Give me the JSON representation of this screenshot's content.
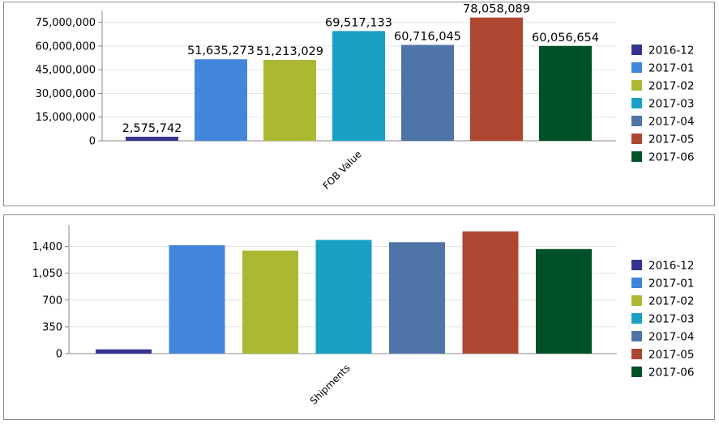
{
  "colors": [
    "#34348f",
    "#4286dc",
    "#aab832",
    "#18a1c5",
    "#4f74a8",
    "#ae4732",
    "#005127"
  ],
  "chart_data": [
    {
      "type": "bar",
      "categories": [
        "2016-12",
        "2017-01",
        "2017-02",
        "2017-03",
        "2017-04",
        "2017-05",
        "2017-06"
      ],
      "values": [
        2575742,
        51635273,
        51213029,
        69517133,
        60716045,
        78058089,
        60056654
      ],
      "data_labels": [
        "2,575,742",
        "51,635,273",
        "51,213,029",
        "69,517,133",
        "60,716,045",
        "78,058,089",
        "60,056,654"
      ],
      "xlabel": "FOB Value",
      "ylim": [
        0,
        82500000
      ],
      "yticks": [
        0,
        15000000,
        30000000,
        45000000,
        60000000,
        75000000
      ],
      "ytick_labels": [
        "0",
        "15,000,000",
        "30,000,000",
        "45,000,000",
        "60,000,000",
        "75,000,000"
      ],
      "legend": [
        "2016-12",
        "2017-01",
        "2017-02",
        "2017-03",
        "2017-04",
        "2017-05",
        "2017-06"
      ],
      "legend_position": "right",
      "grid": true
    },
    {
      "type": "bar",
      "categories": [
        "2016-12",
        "2017-01",
        "2017-02",
        "2017-03",
        "2017-04",
        "2017-05",
        "2017-06"
      ],
      "values": [
        55,
        1415,
        1345,
        1485,
        1455,
        1595,
        1365
      ],
      "xlabel": "Shipments",
      "ylim": [
        0,
        1680
      ],
      "yticks": [
        0,
        350,
        700,
        1050,
        1400
      ],
      "ytick_labels": [
        "0",
        "350",
        "700",
        "1,050",
        "1,400"
      ],
      "legend": [
        "2016-12",
        "2017-01",
        "2017-02",
        "2017-03",
        "2017-04",
        "2017-05",
        "2017-06"
      ],
      "legend_position": "right",
      "grid": true
    }
  ]
}
